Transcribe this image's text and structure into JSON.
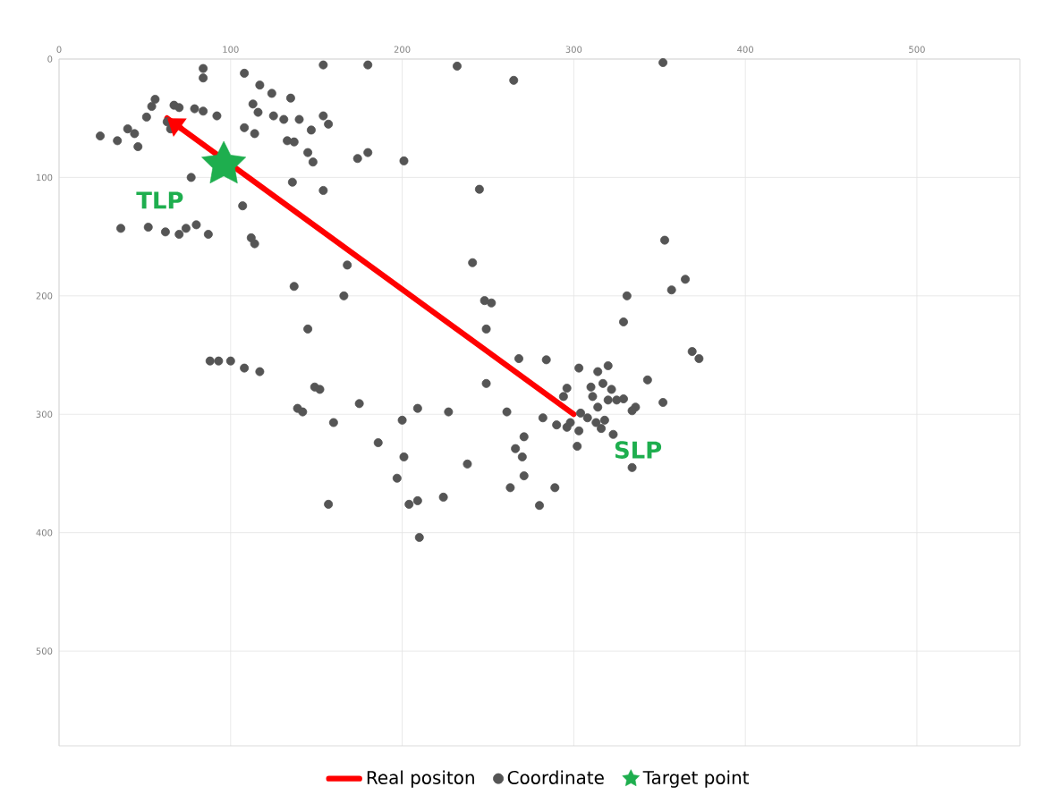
{
  "chart_data": {
    "type": "scatter",
    "xlim": [
      0,
      560
    ],
    "ylim": [
      580,
      0
    ],
    "xticks": [
      0,
      100,
      200,
      300,
      400,
      500
    ],
    "yticks": [
      0,
      100,
      200,
      300,
      400,
      500
    ],
    "grid": true,
    "legend": "bottom",
    "annotations": [
      "TLP",
      "SLP"
    ],
    "series": [
      {
        "name": "Real positon",
        "type": "line",
        "color": "#ff0000",
        "marker": "none",
        "x": [
          300,
          63
        ],
        "values": [
          300,
          50
        ]
      },
      {
        "name": "Coordinate",
        "color": "#555555",
        "marker": "circle",
        "x": [
          84,
          84,
          108,
          154,
          180,
          117,
          124,
          135,
          56,
          54,
          67,
          70,
          79,
          84,
          92,
          51,
          63,
          65,
          113,
          116,
          125,
          131,
          140,
          154,
          157,
          147,
          108,
          114,
          40,
          44,
          24,
          34,
          46,
          133,
          137,
          145,
          148,
          180,
          174,
          77,
          136,
          154,
          107,
          36,
          52,
          62,
          70,
          74,
          80,
          87,
          112,
          114,
          168,
          137,
          166,
          245,
          241,
          248,
          252,
          249,
          145,
          88,
          93,
          100,
          108,
          117,
          149,
          152,
          268,
          249,
          175,
          139,
          142,
          160,
          200,
          209,
          227,
          261,
          186,
          201,
          238,
          197,
          271,
          266,
          270,
          271,
          263,
          224,
          204,
          209,
          157,
          210,
          353,
          357,
          365,
          331,
          329,
          369,
          373,
          284,
          303,
          314,
          320,
          296,
          310,
          317,
          322,
          343,
          294,
          311,
          320,
          325,
          329,
          352,
          336,
          334,
          314,
          304,
          308,
          313,
          318,
          298,
          316,
          303,
          323,
          290,
          282,
          302,
          334,
          289,
          280,
          296,
          232,
          265,
          352,
          201
        ],
        "values": [
          8,
          16,
          12,
          5,
          5,
          22,
          29,
          33,
          34,
          40,
          39,
          41,
          42,
          44,
          48,
          49,
          53,
          59,
          38,
          45,
          48,
          51,
          51,
          48,
          55,
          60,
          58,
          63,
          59,
          63,
          65,
          69,
          74,
          69,
          70,
          79,
          87,
          79,
          84,
          100,
          104,
          111,
          124,
          143,
          142,
          146,
          148,
          143,
          140,
          148,
          151,
          156,
          174,
          192,
          200,
          110,
          172,
          204,
          206,
          228,
          228,
          255,
          255,
          255,
          261,
          264,
          277,
          279,
          253,
          274,
          291,
          295,
          298,
          307,
          305,
          295,
          298,
          298,
          324,
          336,
          342,
          354,
          319,
          329,
          336,
          352,
          362,
          370,
          376,
          373,
          376,
          404,
          153,
          195,
          186,
          200,
          222,
          247,
          253,
          254,
          261,
          264,
          259,
          278,
          277,
          274,
          279,
          271,
          285,
          285,
          288,
          288,
          287,
          290,
          294,
          297,
          294,
          299,
          303,
          307,
          305,
          307,
          312,
          314,
          317,
          309,
          303,
          327,
          345,
          362,
          377,
          311,
          6,
          18,
          3,
          86
        ]
      },
      {
        "name": "Target point",
        "type": "scatter",
        "color": "#1eae4e",
        "marker": "star",
        "x": [
          96
        ],
        "values": [
          89
        ]
      }
    ]
  }
}
